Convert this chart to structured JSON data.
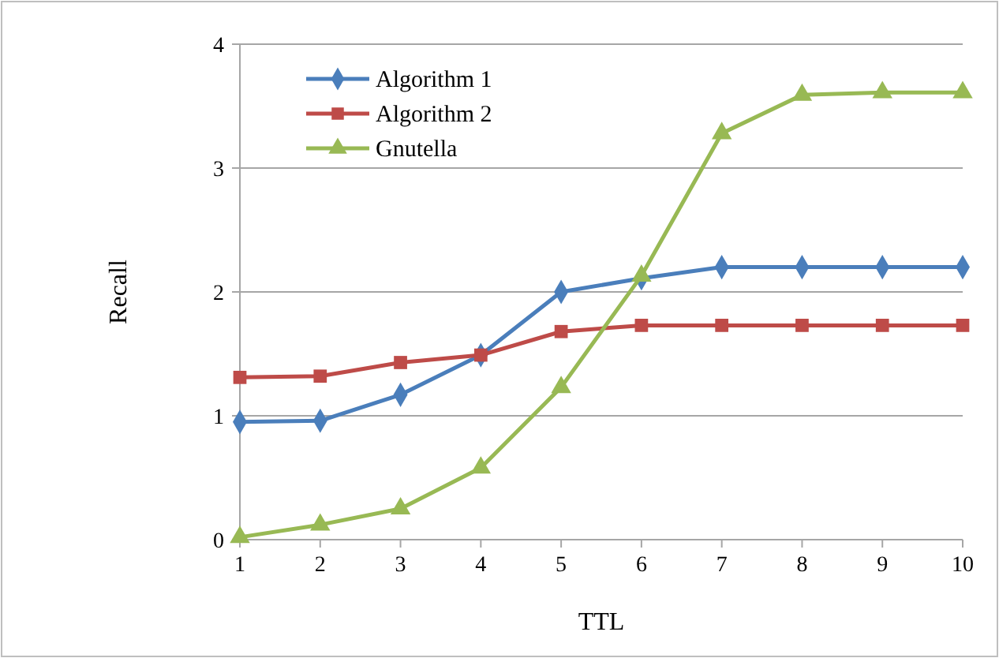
{
  "chart_data": {
    "type": "line",
    "xlabel": "TTL",
    "ylabel": "Recall",
    "x": [
      1,
      2,
      3,
      4,
      5,
      6,
      7,
      8,
      9,
      10
    ],
    "xlim": [
      1,
      10
    ],
    "xticks": [
      1,
      2,
      3,
      4,
      5,
      6,
      7,
      8,
      9,
      10
    ],
    "ylim": [
      0,
      4
    ],
    "yticks": [
      0,
      1,
      2,
      3,
      4
    ],
    "grid": "y",
    "legend": "top left",
    "series": [
      {
        "name": "Algorithm 1",
        "color": "#4a7ebb",
        "marker": "diamond",
        "values": [
          0.95,
          0.96,
          1.17,
          1.49,
          2.0,
          2.11,
          2.2,
          2.2,
          2.2,
          2.2
        ]
      },
      {
        "name": "Algorithm 2",
        "color": "#be4b48",
        "marker": "square",
        "values": [
          1.31,
          1.32,
          1.43,
          1.49,
          1.68,
          1.73,
          1.73,
          1.73,
          1.73,
          1.73
        ]
      },
      {
        "name": "Gnutella",
        "color": "#98b954",
        "marker": "triangle",
        "values": [
          0.02,
          0.12,
          0.25,
          0.58,
          1.23,
          2.13,
          3.28,
          3.59,
          3.61,
          3.61
        ]
      }
    ]
  }
}
